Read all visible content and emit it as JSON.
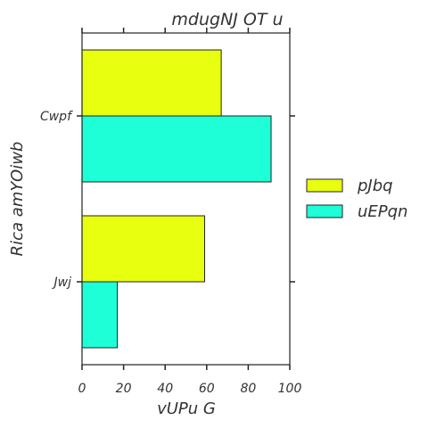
{
  "chart_data": {
    "type": "bar",
    "orientation": "horizontal",
    "title": "mdugNJ  OT u",
    "xlabel": "vUPu  G",
    "ylabel": "Rica amYOiwb",
    "categories": [
      "Cwpf",
      "Jwj"
    ],
    "series": [
      {
        "name": "pJbq",
        "color": "#e8ff0f",
        "values": [
          67,
          59
        ]
      },
      {
        "name": "uEPqn",
        "color": "#1effd8",
        "values": [
          91,
          17
        ]
      }
    ],
    "xlim": [
      0,
      100
    ],
    "xticks": [
      0,
      20,
      40,
      60,
      80,
      100
    ],
    "tick_labels": [
      "0",
      "20",
      "40",
      "60",
      "80",
      "100"
    ],
    "grid": false,
    "legend_position": "right"
  }
}
